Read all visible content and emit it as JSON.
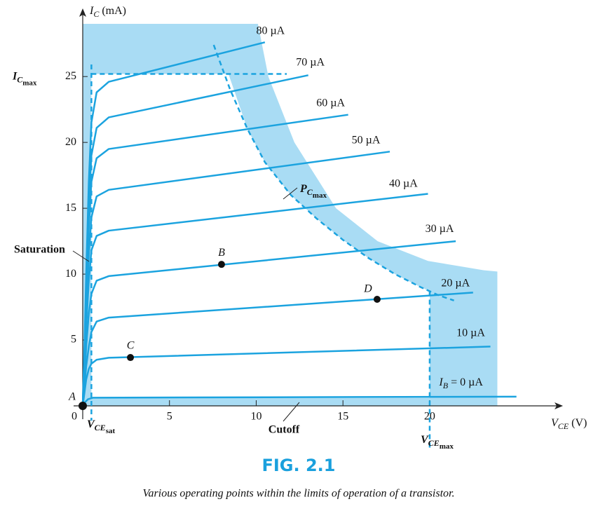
{
  "chart_data": {
    "type": "line",
    "y_label": {
      "main": "I",
      "sub": "C",
      "after": " (mA)"
    },
    "x_label": {
      "main": "V",
      "sub": "CE",
      "after": " (V)"
    },
    "xlim": [
      0,
      27.6
    ],
    "ylim": [
      0,
      29.8
    ],
    "xticks": [
      0,
      5,
      10,
      15,
      20
    ],
    "yticks": [
      5,
      10,
      15,
      20,
      25
    ],
    "color": "#1ba3df",
    "shade_color": "#a9dcf4",
    "series": [
      {
        "name": {
          "main": "80 µA"
        },
        "x": [
          0,
          0.1,
          0.2,
          0.35,
          0.5,
          0.8,
          1.5,
          10.5
        ],
        "values": [
          0,
          4.5,
          10,
          17,
          21.5,
          23.8,
          24.6,
          27.6
        ]
      },
      {
        "name": {
          "main": "70 µA"
        },
        "x": [
          0,
          0.1,
          0.2,
          0.35,
          0.5,
          0.8,
          1.5,
          13
        ],
        "values": [
          0,
          4,
          9,
          15,
          19,
          21.1,
          21.9,
          25.1
        ]
      },
      {
        "name": {
          "main": "60 µA"
        },
        "x": [
          0,
          0.1,
          0.2,
          0.35,
          0.5,
          0.8,
          1.5,
          15.3
        ],
        "values": [
          0,
          3.5,
          8,
          13.5,
          17,
          18.8,
          19.5,
          22.1
        ]
      },
      {
        "name": {
          "main": "50 µA"
        },
        "x": [
          0,
          0.1,
          0.2,
          0.35,
          0.5,
          0.8,
          1.5,
          17.7
        ],
        "values": [
          0,
          3,
          7,
          11.5,
          14.3,
          15.9,
          16.4,
          19.3
        ]
      },
      {
        "name": {
          "main": "40 µA"
        },
        "x": [
          0,
          0.1,
          0.2,
          0.35,
          0.5,
          0.8,
          1.5,
          19.9
        ],
        "values": [
          0,
          2.5,
          6,
          9.5,
          11.8,
          12.9,
          13.3,
          16.1
        ]
      },
      {
        "name": {
          "main": "30 µA"
        },
        "x": [
          0,
          0.1,
          0.2,
          0.35,
          0.5,
          0.8,
          1.5,
          21.5
        ],
        "values": [
          0,
          2,
          4.5,
          7,
          8.5,
          9.5,
          9.85,
          12.5
        ]
      },
      {
        "name": {
          "main": "20 µA"
        },
        "x": [
          0,
          0.1,
          0.2,
          0.35,
          0.5,
          0.8,
          1.5,
          22.5
        ],
        "values": [
          0,
          1.5,
          3,
          4.5,
          5.6,
          6.4,
          6.7,
          8.6
        ]
      },
      {
        "name": {
          "main": "10 µA"
        },
        "x": [
          0,
          0.1,
          0.2,
          0.35,
          0.5,
          0.8,
          1.5,
          23.5
        ],
        "values": [
          0,
          1,
          2,
          2.8,
          3.2,
          3.5,
          3.65,
          4.5
        ]
      },
      {
        "name": {
          "main": "I",
          "sub": "B",
          "after": " = 0 µA"
        },
        "x": [
          0,
          0.15,
          0.3,
          0.6,
          25
        ],
        "values": [
          0,
          0.3,
          0.5,
          0.62,
          0.7
        ]
      }
    ],
    "pc_max_curve": {
      "label": {
        "main": "P",
        "sub": "C",
        "subsub": "max"
      },
      "x": [
        7.55,
        8.5,
        9.5,
        10.5,
        12,
        13.5,
        15,
        16.5,
        18,
        19.5,
        20.5,
        21.4
      ],
      "values": [
        27.4,
        24,
        21,
        18.5,
        16,
        14.2,
        12.6,
        11.2,
        10,
        9,
        8.4,
        8.0
      ]
    },
    "shaded_region": {
      "x": [
        0,
        0,
        10.1,
        10.7,
        12.2,
        14.6,
        17,
        19.9,
        23.1,
        23.9,
        23.9
      ],
      "values": [
        0,
        29,
        29,
        25,
        20,
        15,
        12.5,
        11,
        10.3,
        10.2,
        0
      ]
    },
    "active_region": {
      "x": [
        0.5,
        0.5,
        8.4,
        9.5,
        10.5,
        12,
        13.5,
        15,
        16.5,
        18,
        19.5,
        20,
        20
      ],
      "values": [
        0.6,
        25.2,
        25.2,
        21,
        18.5,
        16,
        14.2,
        12.6,
        11.2,
        10,
        9,
        8.7,
        0.6
      ]
    },
    "ic_max": {
      "label": {
        "main": "I",
        "sub": "C",
        "subsub": "max"
      },
      "value": 25.2
    },
    "vce_sat": {
      "label": {
        "main": "V",
        "sub": "CE",
        "subsub": "sat"
      },
      "value": 0.5
    },
    "vce_max": {
      "label": {
        "main": "V",
        "sub": "CE",
        "subsub": "max"
      },
      "value": 20
    },
    "points": [
      {
        "label": "A",
        "x": 0,
        "y": 0
      },
      {
        "label": "B",
        "x": 8,
        "y": 10.74
      },
      {
        "label": "C",
        "x": 2.75,
        "y": 3.67
      },
      {
        "label": "D",
        "x": 16.97,
        "y": 8.09
      }
    ],
    "annotations": [
      "Saturation",
      "Cutoff"
    ],
    "figure_label": "FIG. 2.1",
    "caption": "Various operating points within the limits of operation of a transistor."
  }
}
